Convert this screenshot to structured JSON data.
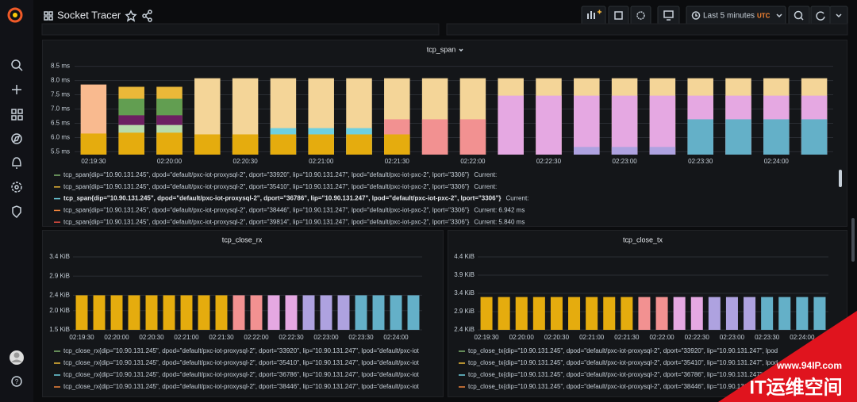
{
  "header": {
    "title": "Socket Tracer",
    "time_range": "Last 5 minutes",
    "timezone": "UTC"
  },
  "watermark": {
    "url": "www.94IP.com",
    "brand": "IT运维空间"
  },
  "chart_data": [
    {
      "type": "bar",
      "title": "tcp_span",
      "grid": true,
      "categories": [
        "02:19:30",
        null,
        "02:20:00",
        null,
        "02:20:30",
        null,
        "02:21:00",
        null,
        "02:21:30",
        null,
        "02:22:00",
        null,
        "02:22:30",
        null,
        "02:23:00",
        null,
        "02:23:30",
        null,
        "02:24:00",
        null
      ],
      "ylim": [
        5.4,
        8.6
      ],
      "yticks": [
        {
          "value": 8.5,
          "label": "8.5 ms"
        },
        {
          "value": 8.0,
          "label": "8.0 ms"
        },
        {
          "value": 7.5,
          "label": "7.5 ms"
        },
        {
          "value": 7.0,
          "label": "7.0 ms"
        },
        {
          "value": 6.5,
          "label": "6.5 ms"
        },
        {
          "value": 6.0,
          "label": "6.0 ms"
        },
        {
          "value": 5.5,
          "label": "5.5 ms"
        }
      ],
      "series": [
        {
          "color": "#E5AC0E",
          "values": [
            6.14,
            6.17,
            6.17,
            6.11,
            6.11,
            6.11,
            6.11,
            6.11,
            6.11,
            null,
            null,
            null,
            null,
            null,
            null,
            null,
            null,
            null,
            null,
            null
          ]
        },
        {
          "color": "#F9BA8F",
          "values": [
            7.86,
            null,
            null,
            null,
            null,
            null,
            null,
            null,
            null,
            null,
            null,
            null,
            null,
            null,
            null,
            null,
            null,
            null,
            null,
            null
          ]
        },
        {
          "color": "#EAB839",
          "values": [
            null,
            7.78,
            7.78,
            null,
            null,
            null,
            null,
            null,
            null,
            null,
            null,
            null,
            null,
            null,
            null,
            null,
            null,
            null,
            null,
            null
          ]
        },
        {
          "color": "#629E51",
          "values": [
            null,
            7.36,
            7.36,
            null,
            null,
            null,
            null,
            null,
            null,
            null,
            null,
            null,
            null,
            null,
            null,
            null,
            null,
            null,
            null,
            null
          ]
        },
        {
          "color": "#6D1F62",
          "values": [
            null,
            6.78,
            6.78,
            null,
            null,
            null,
            null,
            null,
            null,
            null,
            null,
            null,
            null,
            null,
            null,
            null,
            null,
            null,
            null,
            null
          ]
        },
        {
          "color": "#B7DBAB",
          "values": [
            null,
            6.44,
            6.44,
            null,
            null,
            null,
            null,
            null,
            null,
            null,
            null,
            null,
            null,
            null,
            null,
            null,
            null,
            null,
            null,
            null
          ]
        },
        {
          "color": "#F4D598",
          "values": [
            null,
            null,
            null,
            8.08,
            8.08,
            8.08,
            8.08,
            8.08,
            8.08,
            8.08,
            8.08,
            8.08,
            8.08,
            8.08,
            8.08,
            8.08,
            8.08,
            8.08,
            8.08,
            8.08
          ]
        },
        {
          "color": "#6ED0E0",
          "values": [
            null,
            null,
            null,
            null,
            null,
            6.33,
            6.33,
            6.33,
            null,
            null,
            null,
            null,
            null,
            null,
            null,
            null,
            null,
            null,
            null,
            null
          ]
        },
        {
          "color": "#F29191",
          "values": [
            null,
            null,
            null,
            null,
            null,
            null,
            null,
            null,
            6.64,
            6.64,
            6.64,
            null,
            null,
            null,
            null,
            null,
            null,
            null,
            null,
            null
          ]
        },
        {
          "color": "#E5A8E2",
          "values": [
            null,
            null,
            null,
            null,
            null,
            null,
            null,
            null,
            null,
            null,
            null,
            7.47,
            7.47,
            7.47,
            7.47,
            7.47,
            7.47,
            7.47,
            7.47,
            7.47
          ]
        },
        {
          "color": "#AEA2E0",
          "values": [
            null,
            null,
            null,
            null,
            null,
            null,
            null,
            null,
            null,
            null,
            null,
            null,
            null,
            5.67,
            5.67,
            5.67,
            null,
            null,
            null,
            null
          ]
        },
        {
          "color": "#64B0C8",
          "values": [
            null,
            null,
            null,
            null,
            null,
            null,
            null,
            null,
            null,
            null,
            null,
            null,
            null,
            null,
            null,
            null,
            6.64,
            6.64,
            6.64,
            6.64
          ]
        }
      ],
      "legend": [
        {
          "color": "#7EB26D",
          "label": "tcp_span{dip=\"10.90.131.245\", dpod=\"default/pxc-iot-proxysql-2\", dport=\"33920\", lip=\"10.90.131.247\", lpod=\"default/pxc-iot-pxc-2\", lport=\"3306\"}",
          "current": "Current:"
        },
        {
          "color": "#EAB839",
          "label": "tcp_span{dip=\"10.90.131.245\", dpod=\"default/pxc-iot-proxysql-2\", dport=\"35410\", lip=\"10.90.131.247\", lpod=\"default/pxc-iot-pxc-2\", lport=\"3306\"}",
          "current": "Current:"
        },
        {
          "color": "#6ED0E0",
          "label": "tcp_span{dip=\"10.90.131.245\", dpod=\"default/pxc-iot-proxysql-2\", dport=\"36786\", lip=\"10.90.131.247\", lpod=\"default/pxc-iot-pxc-2\", lport=\"3306\"}",
          "current": "Current:"
        },
        {
          "color": "#EF843C",
          "label": "tcp_span{dip=\"10.90.131.245\", dpod=\"default/pxc-iot-proxysql-2\", dport=\"38446\", lip=\"10.90.131.247\", lpod=\"default/pxc-iot-pxc-2\", lport=\"3306\"}",
          "current": "Current: 6.942 ms"
        },
        {
          "color": "#E24D42",
          "label": "tcp_span{dip=\"10.90.131.245\", dpod=\"default/pxc-iot-proxysql-2\", dport=\"39814\", lip=\"10.90.131.247\", lpod=\"default/pxc-iot-pxc-2\", lport=\"3306\"}",
          "current": "Current: 5.840 ms"
        }
      ]
    },
    {
      "type": "bar",
      "title": "tcp_close_rx",
      "grid": true,
      "categories": [
        "02:19:30",
        null,
        "02:20:00",
        null,
        "02:20:30",
        null,
        "02:21:00",
        null,
        "02:21:30",
        null,
        "02:22:00",
        null,
        "02:22:30",
        null,
        "02:23:00",
        null,
        "02:23:30",
        null,
        "02:24:00",
        null
      ],
      "ylim": [
        1.5,
        3.4
      ],
      "yticks": [
        {
          "value": 3.4,
          "label": "3.4 KiB"
        },
        {
          "value": 2.9,
          "label": "2.9 KiB"
        },
        {
          "value": 2.4,
          "label": "2.4 KiB"
        },
        {
          "value": 2.0,
          "label": "2.0 KiB"
        },
        {
          "value": 1.5,
          "label": "1.5 KiB"
        }
      ],
      "series": [
        {
          "color": "#E5AC0E",
          "values": [
            2.4,
            2.4,
            2.4,
            2.4,
            2.4,
            2.4,
            2.4,
            2.4,
            2.4,
            null,
            null,
            null,
            null,
            null,
            null,
            null,
            null,
            null,
            null,
            null
          ]
        },
        {
          "color": "#F29191",
          "values": [
            null,
            null,
            null,
            null,
            null,
            null,
            null,
            null,
            null,
            2.4,
            2.4,
            null,
            null,
            null,
            null,
            null,
            null,
            null,
            null,
            null
          ]
        },
        {
          "color": "#E5A8E2",
          "values": [
            null,
            null,
            null,
            null,
            null,
            null,
            null,
            null,
            null,
            null,
            null,
            2.4,
            2.4,
            null,
            null,
            null,
            null,
            null,
            null,
            null
          ]
        },
        {
          "color": "#AEA2E0",
          "values": [
            null,
            null,
            null,
            null,
            null,
            null,
            null,
            null,
            null,
            null,
            null,
            null,
            null,
            2.4,
            2.4,
            2.4,
            null,
            null,
            null,
            null
          ]
        },
        {
          "color": "#64B0C8",
          "values": [
            null,
            null,
            null,
            null,
            null,
            null,
            null,
            null,
            null,
            null,
            null,
            null,
            null,
            null,
            null,
            null,
            2.4,
            2.4,
            2.4,
            2.4
          ]
        }
      ],
      "legend": [
        {
          "color": "#7EB26D",
          "label": "tcp_close_rx{dip=\"10.90.131.245\", dpod=\"default/pxc-iot-proxysql-2\", dport=\"33920\", lip=\"10.90.131.247\", lpod=\"default/pxc-iot"
        },
        {
          "color": "#EAB839",
          "label": "tcp_close_rx{dip=\"10.90.131.245\", dpod=\"default/pxc-iot-proxysql-2\", dport=\"35410\", lip=\"10.90.131.247\", lpod=\"default/pxc-iot"
        },
        {
          "color": "#6ED0E0",
          "label": "tcp_close_rx{dip=\"10.90.131.245\", dpod=\"default/pxc-iot-proxysql-2\", dport=\"36786\", lip=\"10.90.131.247\", lpod=\"default/pxc-iot"
        },
        {
          "color": "#EF843C",
          "label": "tcp_close_rx{dip=\"10.90.131.245\", dpod=\"default/pxc-iot-proxysql-2\", dport=\"38446\", lip=\"10.90.131.247\", lpod=\"default/pxc-iot"
        }
      ]
    },
    {
      "type": "bar",
      "title": "tcp_close_tx",
      "grid": true,
      "categories": [
        "02:19:30",
        null,
        "02:20:00",
        null,
        "02:20:30",
        null,
        "02:21:00",
        null,
        "02:21:30",
        null,
        "02:22:00",
        null,
        "02:22:30",
        null,
        "02:23:00",
        null,
        "02:23:30",
        null,
        "02:24:00",
        null
      ],
      "ylim": [
        2.4,
        4.4
      ],
      "yticks": [
        {
          "value": 4.4,
          "label": "4.4 KiB"
        },
        {
          "value": 3.9,
          "label": "3.9 KiB"
        },
        {
          "value": 3.4,
          "label": "3.4 KiB"
        },
        {
          "value": 2.9,
          "label": "2.9 KiB"
        },
        {
          "value": 2.4,
          "label": "2.4 KiB"
        }
      ],
      "series": [
        {
          "color": "#E5AC0E",
          "values": [
            3.3,
            3.3,
            3.3,
            3.3,
            3.3,
            3.3,
            3.3,
            3.3,
            3.3,
            null,
            null,
            null,
            null,
            null,
            null,
            null,
            null,
            null,
            null,
            null
          ]
        },
        {
          "color": "#F29191",
          "values": [
            null,
            null,
            null,
            null,
            null,
            null,
            null,
            null,
            null,
            3.3,
            3.3,
            null,
            null,
            null,
            null,
            null,
            null,
            null,
            null,
            null
          ]
        },
        {
          "color": "#E5A8E2",
          "values": [
            null,
            null,
            null,
            null,
            null,
            null,
            null,
            null,
            null,
            null,
            null,
            3.3,
            3.3,
            null,
            null,
            null,
            null,
            null,
            null,
            null
          ]
        },
        {
          "color": "#AEA2E0",
          "values": [
            null,
            null,
            null,
            null,
            null,
            null,
            null,
            null,
            null,
            null,
            null,
            null,
            null,
            3.3,
            3.3,
            3.3,
            null,
            null,
            null,
            null
          ]
        },
        {
          "color": "#64B0C8",
          "values": [
            null,
            null,
            null,
            null,
            null,
            null,
            null,
            null,
            null,
            null,
            null,
            null,
            null,
            null,
            null,
            null,
            3.3,
            3.3,
            3.3,
            3.3
          ]
        }
      ],
      "legend": [
        {
          "color": "#7EB26D",
          "label": "tcp_close_tx{dip=\"10.90.131.245\", dpod=\"default/pxc-iot-proxysql-2\", dport=\"33920\", lip=\"10.90.131.247\", lpod"
        },
        {
          "color": "#EAB839",
          "label": "tcp_close_tx{dip=\"10.90.131.245\", dpod=\"default/pxc-iot-proxysql-2\", dport=\"35410\", lip=\"10.90.131.247\", lpod"
        },
        {
          "color": "#6ED0E0",
          "label": "tcp_close_tx{dip=\"10.90.131.245\", dpod=\"default/pxc-iot-proxysql-2\", dport=\"36786\", lip=\"10.90.131.247\", lpod"
        },
        {
          "color": "#EF843C",
          "label": "tcp_close_tx{dip=\"10.90.131.245\", dpod=\"default/pxc-iot-proxysql-2\", dport=\"38446\", lip=\"10.90.131.247\", lpod"
        }
      ]
    }
  ]
}
